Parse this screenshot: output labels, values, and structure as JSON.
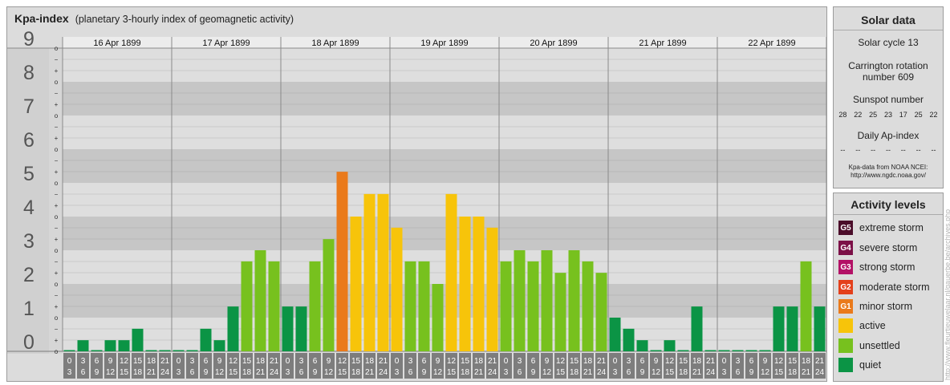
{
  "header": {
    "title": "Kpa-index",
    "subtitle": "(planetary 3-hourly index of geomagnetic activity)"
  },
  "solar": {
    "title": "Solar data",
    "cycle": "Solar cycle 13",
    "carrington_line1": "Carrington rotation",
    "carrington_line2": "number 609",
    "sunspot_label": "Sunspot number",
    "sunspots": [
      "28",
      "22",
      "25",
      "23",
      "17",
      "25",
      "22"
    ],
    "ap_label": "Daily Ap-index",
    "ap_values": [
      "--",
      "--",
      "--",
      "--",
      "--",
      "--",
      "--"
    ],
    "source_line1": "Kpa-data from NOAA NCEI:",
    "source_line2": "http://www.ngdc.noaa.gov/"
  },
  "legend": {
    "title": "Activity levels",
    "items": [
      {
        "code": "G5",
        "label": "extreme storm",
        "color": "#4b0d2a"
      },
      {
        "code": "G4",
        "label": "severe storm",
        "color": "#7c1047"
      },
      {
        "code": "G3",
        "label": "strong storm",
        "color": "#b31166"
      },
      {
        "code": "G2",
        "label": "moderate storm",
        "color": "#e4401b"
      },
      {
        "code": "G1",
        "label": "minor storm",
        "color": "#ea7a1b"
      },
      {
        "code": "",
        "label": "active",
        "color": "#f7c40a"
      },
      {
        "code": "",
        "label": "unsettled",
        "color": "#77c11e"
      },
      {
        "code": "",
        "label": "quiet",
        "color": "#0b9445"
      }
    ]
  },
  "watermark": "http://www.fleurtjeuwelaar.nl/gauerbe.be/archives.php",
  "chart_data": {
    "type": "bar",
    "y_range": [
      0,
      9
    ],
    "y_ticks": [
      "0",
      "1",
      "2",
      "3",
      "4",
      "5",
      "6",
      "7",
      "8",
      "9"
    ],
    "minor_marks": [
      "o",
      "+",
      "−"
    ],
    "days": [
      "16 Apr 1899",
      "17 Apr 1899",
      "18 Apr 1899",
      "19 Apr 1899",
      "20 Apr 1899",
      "21 Apr 1899",
      "22 Apr 1899"
    ],
    "hour_starts": [
      "0",
      "3",
      "6",
      "9",
      "12",
      "15",
      "18",
      "21"
    ],
    "hour_ends": [
      "3",
      "6",
      "9",
      "12",
      "15",
      "18",
      "21",
      "24"
    ],
    "levels": {
      "quiet": "#0b9445",
      "unsettled": "#77c11e",
      "active": "#f7c40a",
      "minor_storm": "#ea7a1b"
    },
    "values": [
      0,
      0.33,
      0,
      0.33,
      0.33,
      0.67,
      0,
      0,
      0,
      0,
      0.67,
      0.33,
      1.33,
      2.67,
      3,
      2.67,
      1.33,
      1.33,
      2.67,
      3.33,
      5.33,
      4,
      4.67,
      4.67,
      3.67,
      2.67,
      2.67,
      2,
      4.67,
      4,
      4,
      3.67,
      2.67,
      3,
      2.67,
      3,
      2.33,
      3,
      2.67,
      2.33,
      1,
      0.67,
      0.33,
      0,
      0.33,
      0,
      1.33,
      0,
      0,
      0,
      0,
      0,
      1.33,
      1.33,
      2.67,
      1.33
    ]
  }
}
